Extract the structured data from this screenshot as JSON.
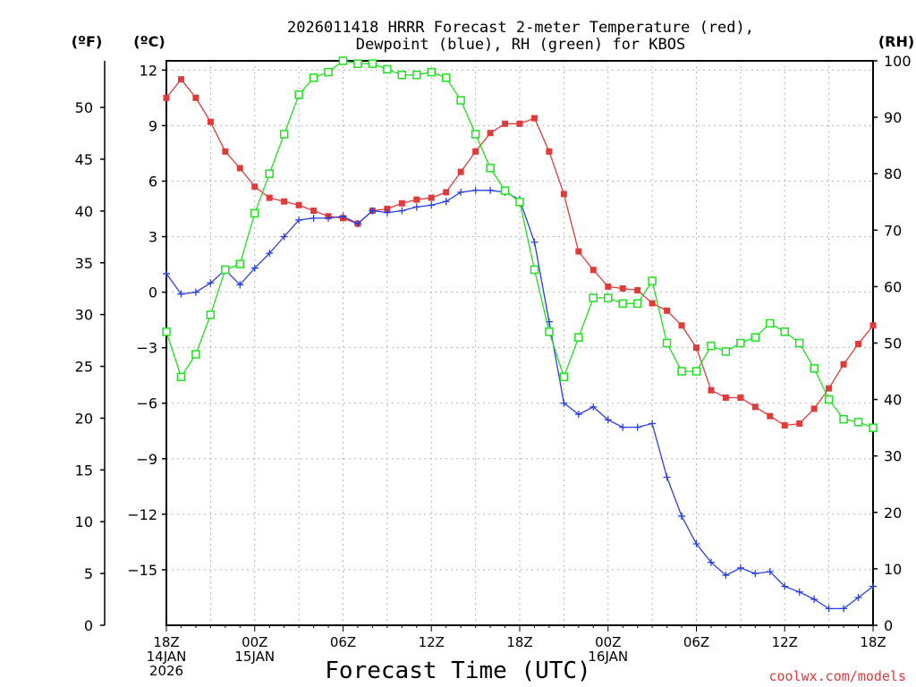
{
  "chart_data": {
    "type": "line",
    "title_line1": "2026011418 HRRR Forecast 2-meter Temperature (red),",
    "title_line2": "Dewpoint (blue), RH (green) for KBOS",
    "xlabel": "Forecast Time (UTC)",
    "credit": "coolwx.com/models",
    "left_outer_unit": "(ºF)",
    "left_inner_unit": "(ºC)",
    "right_unit": "(RH)",
    "x_range": [
      0,
      48
    ],
    "c_range": [
      -18,
      12.5
    ],
    "f_range": [
      0,
      54.5
    ],
    "rh_range": [
      0,
      100
    ],
    "x_ticks": [
      {
        "x": 0,
        "lines": [
          "18Z",
          "14JAN",
          "2026"
        ]
      },
      {
        "x": 6,
        "lines": [
          "00Z",
          "15JAN"
        ]
      },
      {
        "x": 12,
        "lines": [
          "06Z"
        ]
      },
      {
        "x": 18,
        "lines": [
          "12Z"
        ]
      },
      {
        "x": 24,
        "lines": [
          "18Z"
        ]
      },
      {
        "x": 30,
        "lines": [
          "00Z",
          "16JAN"
        ]
      },
      {
        "x": 36,
        "lines": [
          "06Z"
        ]
      },
      {
        "x": 42,
        "lines": [
          "12Z"
        ]
      },
      {
        "x": 48,
        "lines": [
          "18Z"
        ]
      }
    ],
    "c_ticks": [
      "12",
      "9",
      "6",
      "3",
      "0",
      "−3",
      "−6",
      "−9",
      "−12",
      "−15"
    ],
    "f_ticks": [
      "50",
      "45",
      "40",
      "35",
      "30",
      "25",
      "20",
      "15",
      "10",
      "5",
      "0"
    ],
    "rh_ticks": [
      "100",
      "90",
      "80",
      "70",
      "60",
      "50",
      "40",
      "30",
      "20",
      "10",
      "0"
    ],
    "series": [
      {
        "name": "Temperature",
        "color": "#e03a3a",
        "marker": "filled-square",
        "values": [
          10.5,
          11.5,
          10.5,
          9.2,
          7.6,
          6.7,
          5.7,
          5.1,
          4.9,
          4.7,
          4.4,
          4.1,
          4.0,
          3.7,
          4.4,
          4.5,
          4.8,
          5.0,
          5.1,
          5.4,
          6.5,
          7.6,
          8.6,
          9.1,
          9.1,
          9.4,
          7.6,
          5.3,
          2.2,
          1.2,
          0.3,
          0.2,
          0.1,
          -0.6,
          -1.0,
          -1.8,
          -3.0,
          -5.3,
          -5.7,
          -5.7,
          -6.2,
          -6.7,
          -7.2,
          -7.1,
          -6.3,
          -5.2,
          -3.9,
          -2.8,
          -1.8
        ]
      },
      {
        "name": "Dewpoint",
        "color": "#2a3fe0",
        "marker": "plus",
        "values": [
          1.0,
          -0.1,
          0.0,
          0.5,
          1.2,
          0.4,
          1.3,
          2.1,
          3.0,
          3.9,
          4.0,
          4.0,
          4.1,
          3.7,
          4.4,
          4.3,
          4.4,
          4.6,
          4.7,
          4.9,
          5.4,
          5.5,
          5.5,
          5.4,
          5.0,
          2.7,
          -1.6,
          -6.0,
          -6.6,
          -6.2,
          -6.9,
          -7.3,
          -7.3,
          -7.1,
          -10.0,
          -12.1,
          -13.6,
          -14.6,
          -15.3,
          -14.9,
          -15.2,
          -15.1,
          -15.9,
          -16.2,
          -16.6,
          -17.1,
          -17.1,
          -16.5,
          -15.9
        ]
      },
      {
        "name": "RH",
        "color": "#1ee01e",
        "marker": "open-square",
        "values": [
          52,
          44,
          48,
          55,
          63,
          64,
          73,
          80,
          87,
          94,
          97,
          98,
          100,
          99.5,
          99.5,
          98.5,
          97.5,
          97.5,
          98,
          97,
          93,
          87,
          81,
          77,
          75,
          63,
          52,
          44,
          51,
          58,
          58,
          57,
          57,
          61,
          50,
          45,
          45,
          49.5,
          48.5,
          50,
          51,
          53.5,
          52,
          50,
          45.5,
          40,
          36.5,
          36,
          35
        ]
      }
    ]
  }
}
